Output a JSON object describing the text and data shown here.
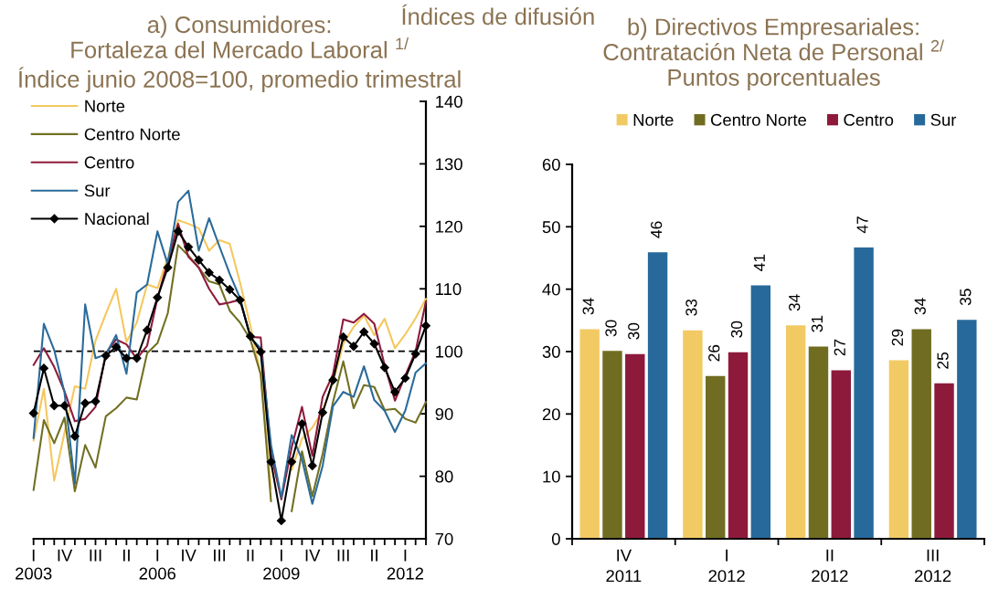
{
  "chart_data": [
    {
      "type": "line",
      "title": "a) Consumidores:\nFortaleza del Mercado Laboral $^{1/}$\nÍndice junio 2008=100, promedio trimestral",
      "annotations": [
        "Índices de difusión"
      ],
      "categories": [
        "I\n2003",
        null,
        null,
        "IV",
        null,
        null,
        "III",
        null,
        null,
        "II",
        null,
        null,
        "I\n2006",
        null,
        null,
        "IV",
        null,
        null,
        "III",
        null,
        null,
        "II",
        null,
        null,
        "I\n2009",
        null,
        null,
        "IV",
        null,
        null,
        "III",
        null,
        null,
        "II",
        null,
        null,
        "I\n2012",
        null,
        null
      ],
      "series": [
        {
          "name": "Norte",
          "color": "#F5C75E",
          "values": [
            85.7,
            94.0,
            79.3,
            87.0,
            94.4,
            94.0,
            101.7,
            106.0,
            110.0,
            101.5,
            104.6,
            110.7,
            110.1,
            115.0,
            121.0,
            120.4,
            119.7,
            116.1,
            117.8,
            117.2,
            111.0,
            104.1,
            96.3,
            78.0,
            null,
            81.0,
            86.0,
            87.8,
            90.5,
            95.0,
            101.2,
            103.9,
            105.7,
            102.6,
            105.2,
            100.5,
            102.7,
            105.3,
            108.4
          ]
        },
        {
          "name": "Centro Norte",
          "color": "#717023",
          "values": [
            77.8,
            89.0,
            85.3,
            89.4,
            77.6,
            85.0,
            81.4,
            89.6,
            90.9,
            92.6,
            92.3,
            99.7,
            101.3,
            106.1,
            117.0,
            115.3,
            113.4,
            111.2,
            110.7,
            106.5,
            104.6,
            101.9,
            96.3,
            76.0,
            null,
            74.4,
            84.0,
            76.8,
            83.6,
            91.9,
            98.4,
            90.9,
            94.6,
            94.3,
            90.6,
            90.8,
            89.2,
            88.6,
            91.9
          ]
        },
        {
          "name": "Centro",
          "color": "#8E1B3C",
          "values": [
            97.8,
            100.5,
            97.5,
            93.6,
            88.8,
            89.2,
            91.1,
            99.7,
            101.9,
            101.1,
            98.8,
            100.9,
            108.5,
            114.3,
            120.4,
            115.1,
            113.4,
            110.0,
            107.5,
            107.8,
            108.3,
            102.3,
            102.2,
            83.6,
            76.3,
            84.6,
            91.1,
            83.3,
            92.7,
            96.3,
            105.1,
            104.6,
            106.0,
            104.4,
            97.8,
            92.1,
            96.1,
            100.0,
            108.0
          ]
        },
        {
          "name": "Sur",
          "color": "#2A6B9B",
          "values": [
            86.1,
            104.4,
            100.2,
            93.4,
            78.8,
            107.5,
            98.9,
            99.5,
            102.6,
            96.4,
            109.4,
            110.7,
            119.2,
            113.9,
            123.9,
            125.7,
            116.1,
            121.3,
            116.8,
            112.4,
            108.5,
            102.2,
            100.5,
            85.0,
            76.6,
            86.6,
            82.7,
            75.6,
            81.7,
            91.2,
            93.5,
            92.7,
            97.6,
            92.2,
            90.5,
            87.1,
            90.5,
            96.6,
            98.1
          ]
        },
        {
          "name": "Nacional",
          "color": "#000000",
          "marker": "diamond",
          "values": [
            90.1,
            97.3,
            91.3,
            91.3,
            86.4,
            91.7,
            92.0,
            99.3,
            100.7,
            98.9,
            98.9,
            103.4,
            108.6,
            113.4,
            119.2,
            116.7,
            114.6,
            112.6,
            111.4,
            109.9,
            108.2,
            102.4,
            99.9,
            82.3,
            72.9,
            82.3,
            88.4,
            81.7,
            90.2,
            95.4,
            102.3,
            100.8,
            103.1,
            101.2,
            97.4,
            93.5,
            95.7,
            99.6,
            104.1
          ]
        }
      ],
      "ylim": [
        70,
        140
      ],
      "yticks": [
        70,
        80,
        90,
        100,
        110,
        120,
        130,
        140
      ],
      "ref_lines": [
        {
          "axis": "y",
          "value": 100,
          "color": "#000000",
          "line_style": "dashed"
        }
      ],
      "legend": "top left",
      "grid": false
    },
    {
      "type": "bar",
      "title": "b) Directivos Empresariales:\nContratación Neta de Personal $^{2/}$\nPuntos porcentuales",
      "categories": [
        "IV\n2011",
        "I\n2012",
        "II\n2012",
        "III\n2012"
      ],
      "series": [
        {
          "name": "Norte",
          "color": "#F2CA64",
          "values": [
            33.6,
            33.4,
            34.2,
            28.6
          ],
          "value_labels": [
            "34",
            "33",
            "34",
            "29"
          ]
        },
        {
          "name": "Centro Norte",
          "color": "#706D22",
          "values": [
            30.1,
            26.1,
            30.8,
            33.6
          ],
          "value_labels": [
            "30",
            "26",
            "31",
            "34"
          ]
        },
        {
          "name": "Centro",
          "color": "#8D1A3B",
          "values": [
            29.6,
            29.9,
            27.0,
            24.9
          ],
          "value_labels": [
            "30",
            "30",
            "27",
            "25"
          ]
        },
        {
          "name": "Sur",
          "color": "#27699A",
          "values": [
            45.9,
            40.6,
            46.7,
            35.1
          ],
          "value_labels": [
            "46",
            "41",
            "47",
            "35"
          ]
        }
      ],
      "ylim": [
        0,
        60
      ],
      "yticks": [
        0,
        10,
        20,
        30,
        40,
        50,
        60
      ],
      "legend": "top",
      "grid": false
    }
  ]
}
